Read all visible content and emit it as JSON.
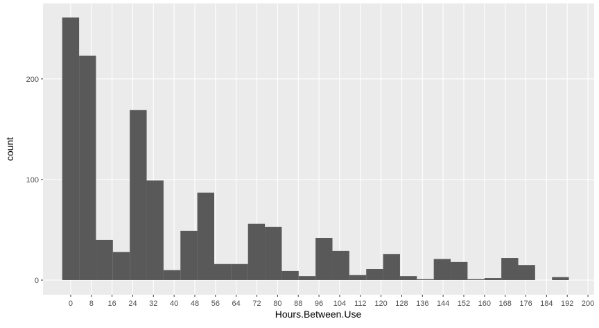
{
  "chart_data": {
    "type": "histogram",
    "x_label": "Hours.Between.Use",
    "y_label": "count",
    "bins": [
      -3.265,
      3.265,
      9.795,
      16.325,
      22.855,
      29.385,
      35.915,
      42.445,
      48.975,
      55.505,
      62.035,
      68.565,
      75.095,
      81.625,
      88.155,
      94.685,
      101.215,
      107.745,
      114.275,
      120.805,
      127.335,
      133.865,
      140.395,
      146.925,
      153.455,
      159.985,
      166.515,
      173.045,
      179.575,
      186.105,
      192.635
    ],
    "counts": [
      261,
      223,
      40,
      28,
      169,
      99,
      10,
      49,
      87,
      16,
      16,
      56,
      53,
      9,
      4,
      42,
      29,
      5,
      11,
      26,
      4,
      1,
      21,
      18,
      1,
      2,
      22,
      15,
      0,
      3
    ],
    "color": "#595959",
    "xlim": [
      -10.7,
      202.4
    ],
    "ylim": [
      -14.5,
      275
    ],
    "xticks": [
      0,
      8,
      16,
      24,
      32,
      40,
      48,
      56,
      64,
      72,
      80,
      88,
      96,
      104,
      112,
      120,
      128,
      136,
      144,
      152,
      160,
      168,
      176,
      184,
      192,
      200
    ],
    "yticks": [
      0,
      100,
      200
    ],
    "grid": true
  }
}
